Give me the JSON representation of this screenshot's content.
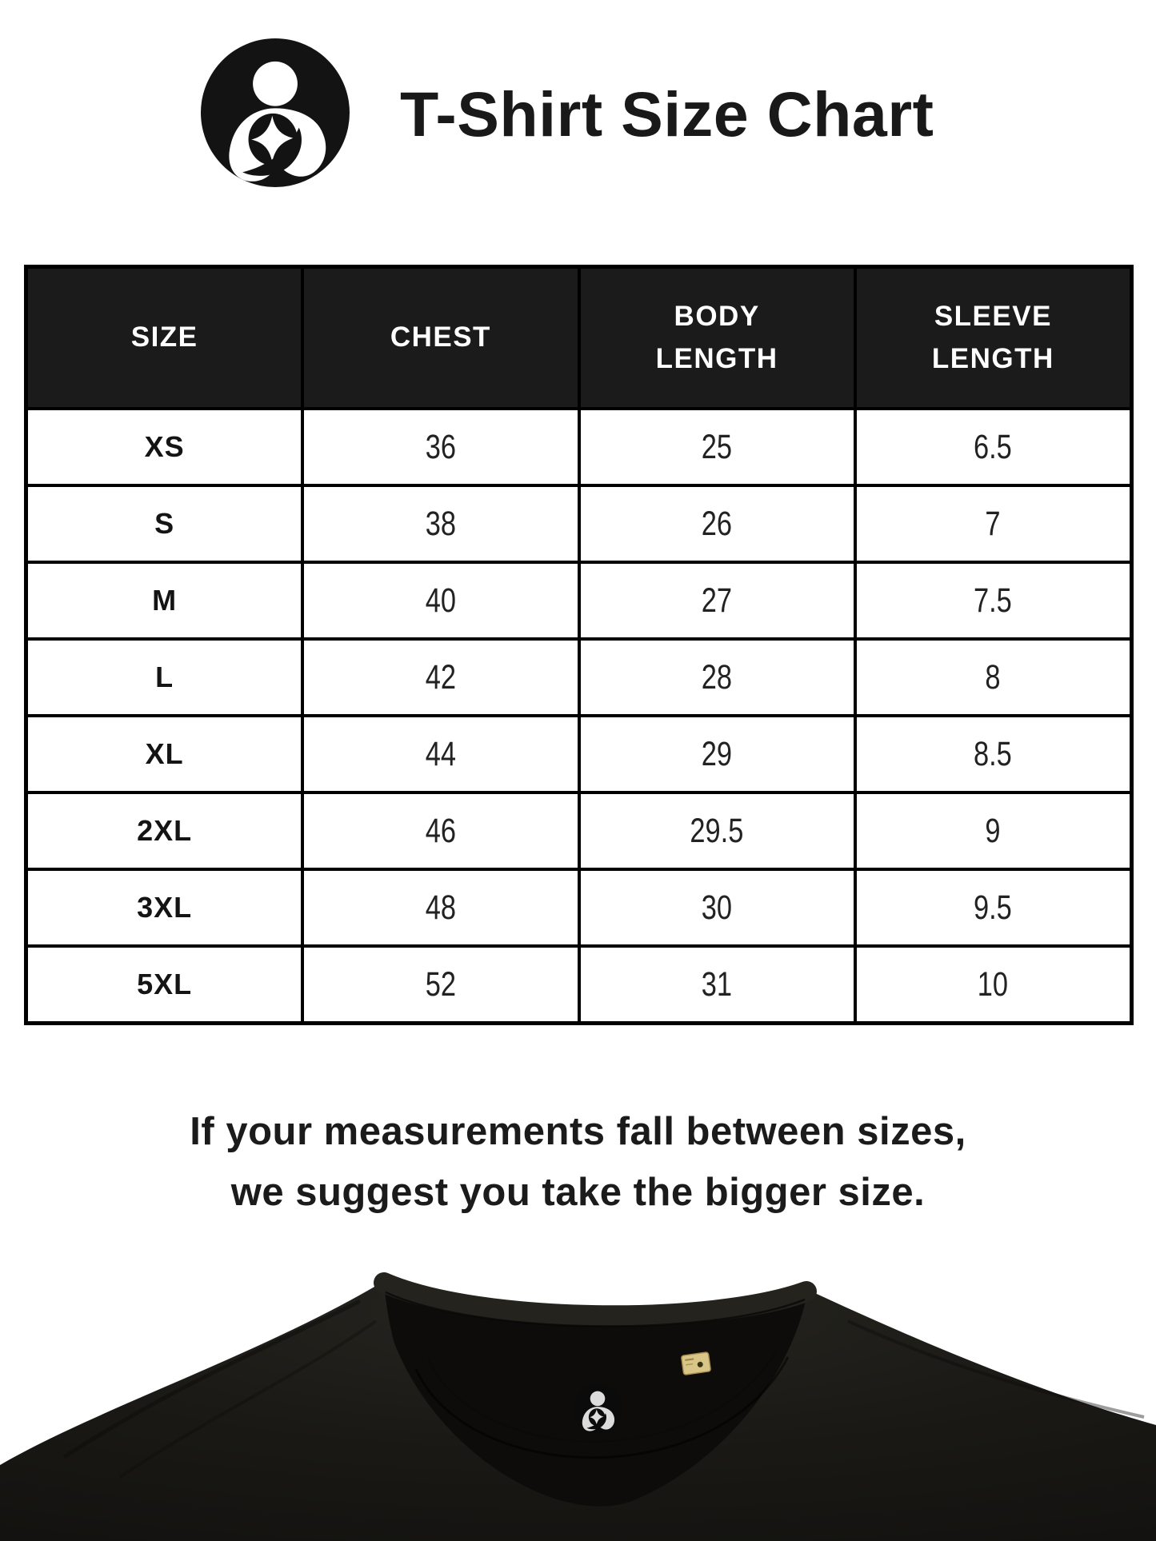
{
  "header": {
    "title": "T-Shirt Size Chart",
    "logo": "mother-and-child-star-logo"
  },
  "size_chart": {
    "columns": [
      "SIZE",
      "CHEST",
      "BODY\nLENGTH",
      "SLEEVE\nLENGTH"
    ],
    "rows": [
      [
        "XS",
        "36",
        "25",
        "6.5"
      ],
      [
        "S",
        "38",
        "26",
        "7"
      ],
      [
        "M",
        "40",
        "27",
        "7.5"
      ],
      [
        "L",
        "42",
        "28",
        "8"
      ],
      [
        "XL",
        "44",
        "29",
        "8.5"
      ],
      [
        "2XL",
        "46",
        "29.5",
        "9"
      ],
      [
        "3XL",
        "48",
        "30",
        "9.5"
      ],
      [
        "5XL",
        "52",
        "31",
        "10"
      ]
    ],
    "colors": {
      "header_background": "#1b1b1b",
      "header_text": "#ffffff",
      "border": "#000000",
      "row_background": "#ffffff"
    }
  },
  "note": {
    "text": "If your measurements fall between sizes,\nwe suggest you take the bigger size."
  },
  "product_photo": {
    "description": "black crew-neck t-shirt collar, inner circular brand label, small gold care tag",
    "shirt_color": "#1a1915",
    "inner_collar_color": "#0d0c0a",
    "label_icon_color": "#dcdcdc",
    "tag_color": "#d9c588"
  }
}
